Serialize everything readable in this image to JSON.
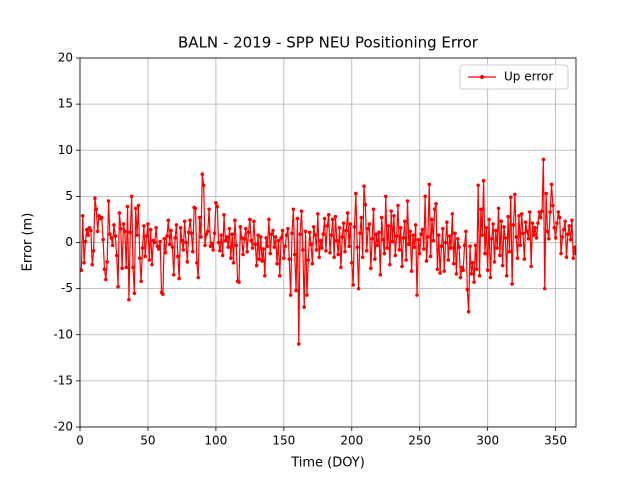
{
  "chart_data": {
    "type": "line",
    "title": "BALN - 2019 - SPP NEU Positioning Error",
    "xlabel": "Time (DOY)",
    "ylabel": "Error (m)",
    "xlim": [
      0,
      365
    ],
    "xticks": [
      0,
      50,
      100,
      150,
      200,
      250,
      300,
      350
    ],
    "ylim": [
      -20,
      20
    ],
    "yticks": [
      -20,
      -15,
      -10,
      -5,
      0,
      5,
      10,
      15,
      20
    ],
    "grid": true,
    "legend": "upper right",
    "x": [
      1,
      2,
      3,
      4,
      5,
      6,
      7,
      8,
      9,
      10,
      11,
      12,
      13,
      14,
      15,
      16,
      17,
      18,
      19,
      20,
      21,
      22,
      23,
      24,
      25,
      26,
      27,
      28,
      29,
      30,
      31,
      32,
      33,
      34,
      35,
      36,
      37,
      38,
      39,
      40,
      41,
      42,
      43,
      44,
      45,
      46,
      47,
      48,
      49,
      50,
      51,
      52,
      53,
      54,
      55,
      56,
      57,
      58,
      59,
      60,
      61,
      62,
      63,
      64,
      65,
      66,
      67,
      68,
      69,
      70,
      71,
      72,
      73,
      74,
      75,
      76,
      77,
      78,
      79,
      80,
      81,
      82,
      83,
      84,
      85,
      86,
      87,
      88,
      89,
      90,
      91,
      92,
      93,
      94,
      95,
      96,
      97,
      98,
      99,
      100,
      101,
      102,
      103,
      104,
      105,
      106,
      107,
      108,
      109,
      110,
      111,
      112,
      113,
      114,
      115,
      116,
      117,
      118,
      119,
      120,
      121,
      122,
      123,
      124,
      125,
      126,
      127,
      128,
      129,
      130,
      131,
      132,
      133,
      134,
      135,
      136,
      137,
      138,
      139,
      140,
      141,
      142,
      143,
      144,
      145,
      146,
      147,
      148,
      149,
      150,
      151,
      152,
      153,
      154,
      155,
      156,
      157,
      158,
      159,
      160,
      161,
      162,
      163,
      164,
      165,
      166,
      167,
      168,
      169,
      170,
      171,
      172,
      173,
      174,
      175,
      176,
      177,
      178,
      179,
      180,
      181,
      182,
      183,
      184,
      185,
      186,
      187,
      188,
      189,
      190,
      191,
      192,
      193,
      194,
      195,
      196,
      197,
      198,
      199,
      200,
      201,
      202,
      203,
      204,
      205,
      206,
      207,
      208,
      209,
      210,
      211,
      212,
      213,
      214,
      215,
      216,
      217,
      218,
      219,
      220,
      221,
      222,
      223,
      224,
      225,
      226,
      227,
      228,
      229,
      230,
      231,
      232,
      233,
      234,
      235,
      236,
      237,
      238,
      239,
      240,
      241,
      242,
      243,
      244,
      245,
      246,
      247,
      248,
      249,
      250,
      251,
      252,
      253,
      254,
      255,
      256,
      257,
      258,
      259,
      260,
      261,
      262,
      263,
      264,
      265,
      266,
      267,
      268,
      269,
      270,
      271,
      272,
      273,
      274,
      275,
      276,
      277,
      278,
      279,
      280,
      281,
      282,
      283,
      284,
      285,
      286,
      287,
      288,
      289,
      290,
      291,
      292,
      293,
      294,
      295,
      296,
      297,
      298,
      299,
      300,
      301,
      302,
      303,
      304,
      305,
      306,
      307,
      308,
      309,
      310,
      311,
      312,
      313,
      314,
      315,
      316,
      317,
      318,
      319,
      320,
      321,
      322,
      323,
      324,
      325,
      326,
      327,
      328,
      329,
      330,
      331,
      332,
      333,
      334,
      335,
      336,
      337,
      338,
      339,
      340,
      341,
      342,
      343,
      344,
      345,
      346,
      347,
      348,
      349,
      350,
      351,
      352,
      353,
      354,
      355,
      356,
      357,
      358,
      359,
      360,
      361,
      362,
      363,
      364,
      365
    ],
    "series": [
      {
        "name": "Up error",
        "color": "#ff0000",
        "values": [
          -3.0,
          2.9,
          -2.2,
          0.1,
          1.4,
          0.8,
          1.6,
          1.3,
          -2.4,
          -0.9,
          4.8,
          3.6,
          1.2,
          2.9,
          2.6,
          2.7,
          0.3,
          -2.9,
          -4.0,
          -2.1,
          4.5,
          0.9,
          0.5,
          -0.3,
          1.9,
          0.7,
          -1.4,
          -4.8,
          3.2,
          1.5,
          -2.8,
          2.0,
          1.2,
          -2.7,
          3.9,
          -6.2,
          1.1,
          5.0,
          -2.7,
          -5.5,
          3.7,
          0.8,
          4.0,
          -1.7,
          -4.2,
          -0.6,
          1.8,
          -1.5,
          0.7,
          2.0,
          -1.9,
          1.4,
          -2.4,
          0.2,
          0.0,
          1.6,
          -0.4,
          -0.7,
          0.1,
          -5.4,
          -5.6,
          0.4,
          -1.1,
          0.7,
          2.4,
          -0.2,
          1.3,
          -0.5,
          -3.5,
          0.5,
          1.9,
          -1.5,
          -3.9,
          1.6,
          0.2,
          -0.8,
          2.3,
          0.0,
          -2.1,
          1.1,
          2.4,
          1.0,
          -1.0,
          3.8,
          3.7,
          -2.2,
          -3.8,
          2.7,
          0.6,
          7.4,
          6.2,
          -0.3,
          0.9,
          1.2,
          3.6,
          -0.4,
          -0.1,
          -0.8,
          1.0,
          4.3,
          3.9,
          0.0,
          -0.9,
          0.8,
          -1.4,
          3.0,
          0.2,
          0.6,
          -0.5,
          1.5,
          -1.7,
          0.9,
          -2.2,
          2.4,
          -0.3,
          -4.2,
          -4.3,
          1.7,
          0.5,
          -1.3,
          0.4,
          1.5,
          -1.0,
          1.1,
          2.5,
          0.2,
          -0.6,
          2.3,
          -0.2,
          -2.5,
          0.8,
          -1.8,
          0.6,
          -2.0,
          -0.7,
          -3.6,
          0.5,
          -0.4,
          2.5,
          -1.2,
          0.9,
          1.3,
          -0.5,
          0.6,
          -2.3,
          0.2,
          -3.6,
          0.5,
          1.3,
          -1.7,
          -0.4,
          0.8,
          1.5,
          -1.8,
          -5.7,
          1.0,
          3.6,
          -1.3,
          -5.2,
          2.6,
          -11.0,
          0.9,
          3.4,
          -0.8,
          -7.0,
          1.2,
          -5.7,
          -1.9,
          1.1,
          -0.2,
          -2.3,
          1.7,
          0.8,
          -0.8,
          3.1,
          -1.6,
          0.2,
          -0.6,
          0.9,
          2.6,
          -0.9,
          1.8,
          3.0,
          -1.1,
          0.8,
          2.5,
          -1.6,
          2.8,
          0.2,
          -1.3,
          1.6,
          -2.7,
          0.6,
          2.1,
          -1.0,
          1.3,
          3.2,
          -0.4,
          2.0,
          -2.2,
          -4.6,
          1.7,
          5.3,
          -0.5,
          -5.0,
          1.0,
          2.7,
          -1.6,
          6.1,
          4.1,
          -0.9,
          1.5,
          2.0,
          -2.8,
          0.4,
          3.6,
          -1.8,
          0.9,
          -0.3,
          1.1,
          -3.5,
          2.7,
          0.3,
          -1.2,
          5.0,
          -0.6,
          1.8,
          -2.4,
          3.4,
          0.1,
          2.9,
          -1.4,
          0.7,
          4.0,
          -0.8,
          1.6,
          -2.6,
          0.5,
          2.3,
          -1.9,
          4.5,
          -0.2,
          1.2,
          -3.1,
          0.8,
          -0.5,
          1.9,
          -5.7,
          0.3,
          -1.2,
          0.9,
          1.4,
          -0.7,
          5.0,
          -2.0,
          0.6,
          6.3,
          -1.5,
          2.5,
          0.2,
          3.6,
          4.2,
          -2.9,
          0.8,
          -3.3,
          -0.4,
          1.5,
          -3.1,
          0.0,
          2.2,
          -1.9,
          0.7,
          -0.6,
          3.1,
          -2.3,
          1.0,
          -3.4,
          0.4,
          -0.5,
          -3.8,
          -2.7,
          -3.0,
          -0.3,
          1.2,
          -5.1,
          -7.5,
          -0.4,
          -3.4,
          -2.2,
          -4.3,
          -0.3,
          -2.9,
          6.2,
          -3.6,
          3.6,
          0.8,
          6.7,
          -1.2,
          1.6,
          -3.0,
          2.5,
          -3.8,
          0.4,
          2.0,
          -2.1,
          1.3,
          -0.6,
          3.7,
          -1.4,
          2.3,
          -2.5,
          1.7,
          0.5,
          -3.6,
          2.8,
          -1.0,
          4.9,
          -4.5,
          1.9,
          5.2,
          0.6,
          -1.7,
          2.9,
          -0.3,
          3.1,
          1.0,
          -1.8,
          2.2,
          1.2,
          0.4,
          3.3,
          -2.6,
          2.1,
          0.8,
          1.6,
          0.5,
          2.1,
          3.3,
          2.7,
          3.4,
          9.0,
          -5.0,
          5.3,
          1.2,
          0.4,
          3.3,
          6.3,
          4.0,
          1.6,
          0.5,
          2.1,
          3.3,
          2.7,
          -1.2,
          0.6,
          1.4,
          2.3,
          -1.6,
          0.9,
          1.8,
          0.3,
          2.4,
          -1.7,
          -0.5,
          -1.2
        ]
      }
    ]
  }
}
